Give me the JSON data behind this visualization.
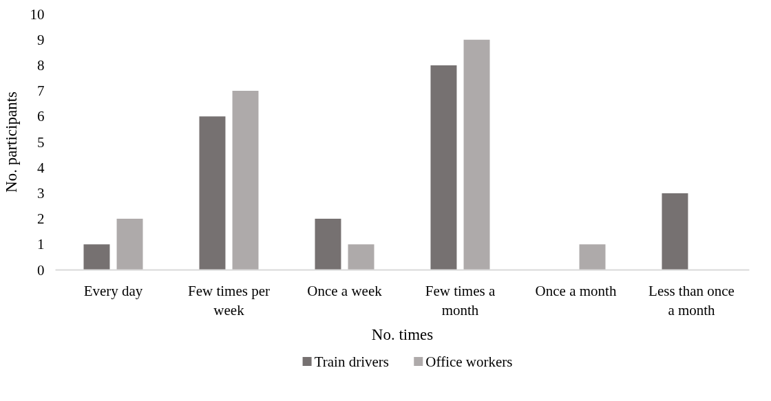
{
  "chart_data": {
    "type": "bar",
    "xlabel": "No. times",
    "ylabel": "No. participants",
    "categories": [
      "Every day",
      "Few times per week",
      "Once a week",
      "Few times a month",
      "Once a month",
      "Less than once a month"
    ],
    "series": [
      {
        "name": "Train drivers",
        "color": "#767171",
        "values": [
          1,
          6,
          2,
          8,
          0,
          3
        ]
      },
      {
        "name": "Office workers",
        "color": "#aeaaaa",
        "values": [
          2,
          7,
          1,
          9,
          1,
          0
        ]
      }
    ],
    "ylim": [
      0,
      10
    ],
    "yticks": [
      0,
      1,
      2,
      3,
      4,
      5,
      6,
      7,
      8,
      9,
      10
    ],
    "grid": false,
    "legend": "bottom"
  }
}
